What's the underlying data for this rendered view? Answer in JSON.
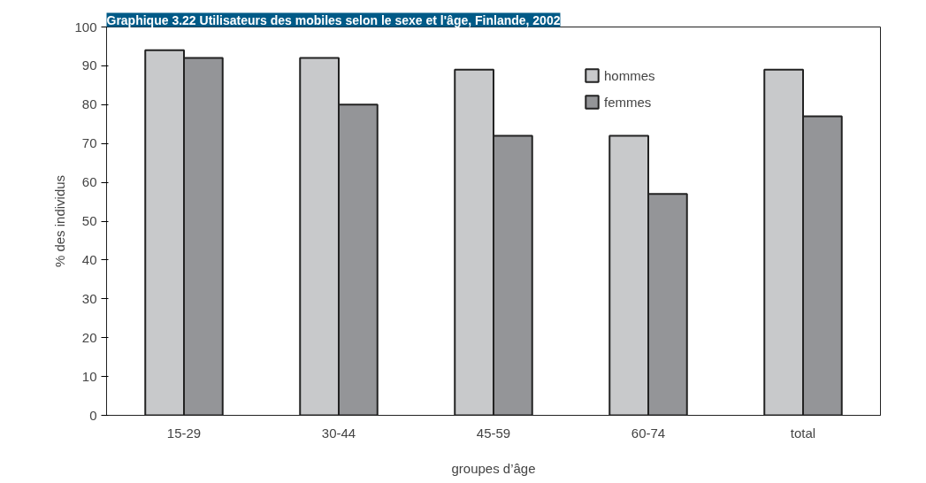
{
  "chart_data": {
    "type": "bar",
    "title": "Graphique 3.22 Utilisateurs des mobiles selon le sexe et l'âge, Finlande, 2002",
    "xlabel": "groupes d’âge",
    "ylabel": "% des individus",
    "categories": [
      "15-29",
      "30-44",
      "45-59",
      "60-74",
      "total"
    ],
    "series": [
      {
        "name": "hommes",
        "color": "#c8c9cb",
        "values": [
          94,
          92,
          89,
          72,
          89
        ]
      },
      {
        "name": "femmes",
        "color": "#949598",
        "values": [
          92,
          80,
          72,
          57,
          77
        ]
      }
    ],
    "ylim": [
      0,
      100
    ],
    "yticks": [
      0,
      10,
      20,
      30,
      40,
      50,
      60,
      70,
      80,
      90,
      100
    ],
    "grid": false,
    "legend": "top right"
  }
}
